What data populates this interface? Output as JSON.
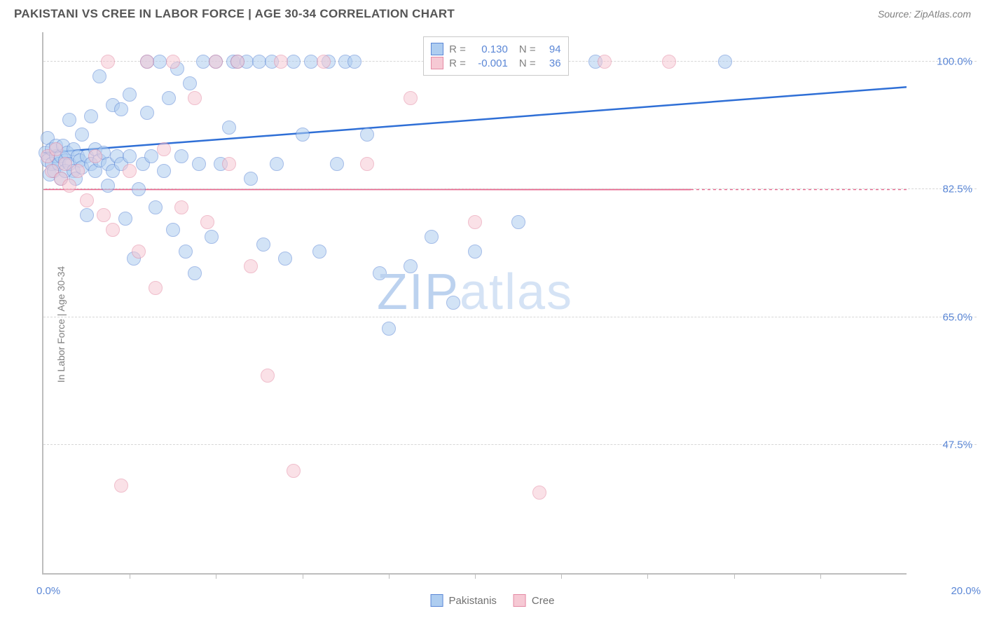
{
  "header": {
    "title": "PAKISTANI VS CREE IN LABOR FORCE | AGE 30-34 CORRELATION CHART",
    "source_prefix": "Source: ",
    "source_name": "ZipAtlas.com"
  },
  "ylabel": "In Labor Force | Age 30-34",
  "watermark": {
    "a": "ZIP",
    "b": "atlas"
  },
  "chart": {
    "type": "scatter",
    "xlim": [
      0,
      20
    ],
    "ylim": [
      30,
      104
    ],
    "x_tick_step": 2,
    "x_tick_labels": {
      "left": "0.0%",
      "right": "20.0%"
    },
    "y_ticks": [
      47.5,
      65.0,
      82.5,
      100.0
    ],
    "y_tick_labels": [
      "47.5%",
      "65.0%",
      "82.5%",
      "100.0%"
    ],
    "background_color": "#ffffff",
    "grid_color": "#d6d6d6",
    "axis_color": "#bdbdbd",
    "tick_label_color": "#5b87d6",
    "marker_radius": 10,
    "marker_opacity": 0.55,
    "series": [
      {
        "key": "pakistanis",
        "label": "Pakistanis",
        "fill": "#aecdf0",
        "stroke": "#5b87d6",
        "r_value": "0.130",
        "n_value": "94",
        "trend": {
          "y_at_xmin": 87.5,
          "y_at_xmax": 96.5,
          "stroke": "#2f6fd6",
          "width": 2.5,
          "x_end": 20
        },
        "points": [
          [
            0.05,
            87.5
          ],
          [
            0.1,
            86.5
          ],
          [
            0.1,
            89.5
          ],
          [
            0.15,
            84.5
          ],
          [
            0.2,
            88.0
          ],
          [
            0.2,
            86.0
          ],
          [
            0.25,
            85.0
          ],
          [
            0.3,
            87.0
          ],
          [
            0.3,
            88.5
          ],
          [
            0.35,
            86.0
          ],
          [
            0.4,
            87.0
          ],
          [
            0.4,
            84.0
          ],
          [
            0.45,
            88.5
          ],
          [
            0.5,
            86.5
          ],
          [
            0.5,
            85.0
          ],
          [
            0.55,
            87.5
          ],
          [
            0.6,
            86.0
          ],
          [
            0.6,
            92.0
          ],
          [
            0.7,
            85.0
          ],
          [
            0.7,
            88.0
          ],
          [
            0.75,
            84.0
          ],
          [
            0.8,
            87.0
          ],
          [
            0.85,
            86.5
          ],
          [
            0.9,
            85.5
          ],
          [
            0.9,
            90.0
          ],
          [
            1.0,
            87.0
          ],
          [
            1.0,
            79.0
          ],
          [
            1.1,
            86.0
          ],
          [
            1.1,
            92.5
          ],
          [
            1.2,
            85.0
          ],
          [
            1.2,
            88.0
          ],
          [
            1.3,
            86.5
          ],
          [
            1.3,
            98.0
          ],
          [
            1.4,
            87.5
          ],
          [
            1.5,
            86.0
          ],
          [
            1.5,
            83.0
          ],
          [
            1.6,
            85.0
          ],
          [
            1.6,
            94.0
          ],
          [
            1.7,
            87.0
          ],
          [
            1.8,
            93.5
          ],
          [
            1.8,
            86.0
          ],
          [
            1.9,
            78.5
          ],
          [
            2.0,
            95.5
          ],
          [
            2.0,
            87.0
          ],
          [
            2.1,
            73.0
          ],
          [
            2.2,
            82.5
          ],
          [
            2.3,
            86.0
          ],
          [
            2.4,
            100.0
          ],
          [
            2.4,
            93.0
          ],
          [
            2.5,
            87.0
          ],
          [
            2.6,
            80.0
          ],
          [
            2.7,
            100.0
          ],
          [
            2.8,
            85.0
          ],
          [
            2.9,
            95.0
          ],
          [
            3.0,
            77.0
          ],
          [
            3.1,
            99.0
          ],
          [
            3.2,
            87.0
          ],
          [
            3.3,
            74.0
          ],
          [
            3.4,
            97.0
          ],
          [
            3.5,
            71.0
          ],
          [
            3.6,
            86.0
          ],
          [
            3.7,
            100.0
          ],
          [
            3.9,
            76.0
          ],
          [
            4.0,
            100.0
          ],
          [
            4.1,
            86.0
          ],
          [
            4.3,
            91.0
          ],
          [
            4.4,
            100.0
          ],
          [
            4.5,
            100.0
          ],
          [
            4.7,
            100.0
          ],
          [
            4.8,
            84.0
          ],
          [
            5.0,
            100.0
          ],
          [
            5.1,
            75.0
          ],
          [
            5.3,
            100.0
          ],
          [
            5.4,
            86.0
          ],
          [
            5.6,
            73.0
          ],
          [
            5.8,
            100.0
          ],
          [
            6.0,
            90.0
          ],
          [
            6.2,
            100.0
          ],
          [
            6.4,
            74.0
          ],
          [
            6.6,
            100.0
          ],
          [
            6.8,
            86.0
          ],
          [
            7.0,
            100.0
          ],
          [
            7.2,
            100.0
          ],
          [
            7.5,
            90.0
          ],
          [
            7.8,
            71.0
          ],
          [
            8.0,
            63.5
          ],
          [
            8.5,
            72.0
          ],
          [
            9.0,
            76.0
          ],
          [
            9.5,
            67.0
          ],
          [
            10.0,
            74.0
          ],
          [
            11.0,
            78.0
          ],
          [
            12.8,
            100.0
          ],
          [
            15.8,
            100.0
          ]
        ]
      },
      {
        "key": "cree",
        "label": "Cree",
        "fill": "#f6c9d4",
        "stroke": "#e48aa4",
        "r_value": "-0.001",
        "n_value": "36",
        "trend": {
          "y_at_xmin": 82.5,
          "y_at_xmax": 82.48,
          "stroke": "#e86a90",
          "width": 2,
          "x_end": 15,
          "dash_after": true
        },
        "points": [
          [
            0.1,
            87.0
          ],
          [
            0.2,
            85.0
          ],
          [
            0.3,
            88.0
          ],
          [
            0.4,
            84.0
          ],
          [
            0.5,
            86.0
          ],
          [
            0.6,
            83.0
          ],
          [
            0.8,
            85.0
          ],
          [
            1.0,
            81.0
          ],
          [
            1.2,
            87.0
          ],
          [
            1.4,
            79.0
          ],
          [
            1.5,
            100.0
          ],
          [
            1.6,
            77.0
          ],
          [
            1.8,
            42.0
          ],
          [
            2.0,
            85.0
          ],
          [
            2.2,
            74.0
          ],
          [
            2.4,
            100.0
          ],
          [
            2.6,
            69.0
          ],
          [
            2.8,
            88.0
          ],
          [
            3.0,
            100.0
          ],
          [
            3.2,
            80.0
          ],
          [
            3.5,
            95.0
          ],
          [
            3.8,
            78.0
          ],
          [
            4.0,
            100.0
          ],
          [
            4.3,
            86.0
          ],
          [
            4.5,
            100.0
          ],
          [
            4.8,
            72.0
          ],
          [
            5.2,
            57.0
          ],
          [
            5.5,
            100.0
          ],
          [
            5.8,
            44.0
          ],
          [
            6.5,
            100.0
          ],
          [
            7.5,
            86.0
          ],
          [
            8.5,
            95.0
          ],
          [
            10.0,
            78.0
          ],
          [
            11.5,
            41.0
          ],
          [
            13.0,
            100.0
          ],
          [
            14.5,
            100.0
          ]
        ]
      }
    ]
  },
  "legend_top": {
    "r_label": "R =",
    "n_label": "N ="
  },
  "legend_bottom": {}
}
